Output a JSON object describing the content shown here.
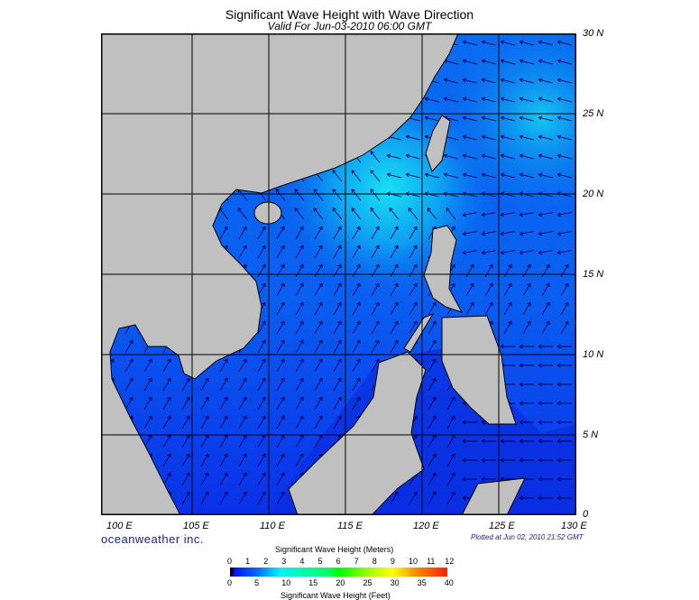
{
  "title": "Significant Wave Height with Wave Direction",
  "subtitle": "Valid For Jun-03-2010 06:00 GMT",
  "lat_labels": [
    "30 N",
    "25 N",
    "20 N",
    "15 N",
    "10 N",
    "5 N",
    "0"
  ],
  "lon_labels": [
    "100 E",
    "105 E",
    "110 E",
    "115 E",
    "120 E",
    "125 E",
    "130 E"
  ],
  "brand": "oceanweather inc.",
  "plotted": "Plotted at Jun 02, 2010 21:52 GMT",
  "colorbar": {
    "meters_title": "Significant Wave Height (Meters)",
    "meters_ticks": [
      "0",
      "1",
      "2",
      "3",
      "4",
      "5",
      "6",
      "7",
      "8",
      "9",
      "10",
      "11",
      "12"
    ],
    "feet_ticks": [
      "0",
      "5",
      "10",
      "15",
      "20",
      "25",
      "30",
      "35",
      "40"
    ],
    "feet_title": "Significant Wave Height (Feet)"
  },
  "colors": {
    "land": "#c0c0c0",
    "ocean_low": "#0a2ee8",
    "ocean_mid": "#0a6cf0",
    "ocean_high": "#18d6f0",
    "arrow": "#00005a"
  }
}
